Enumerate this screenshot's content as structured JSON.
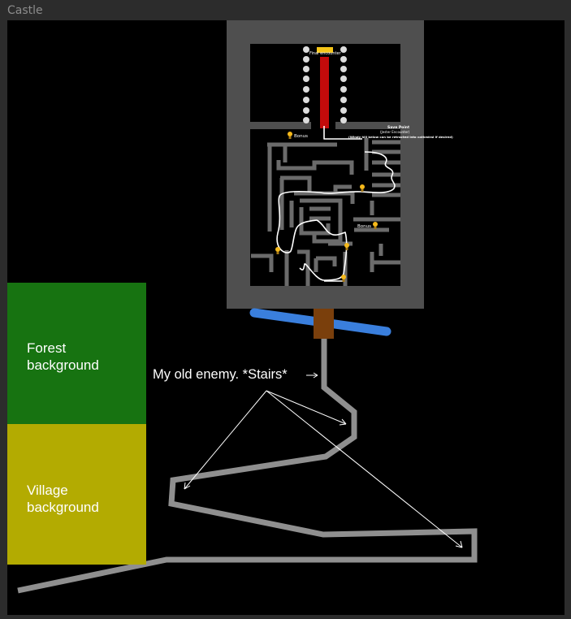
{
  "frame": {
    "title": "Castle"
  },
  "castle": {
    "final_encounter_label": "Final encounter",
    "save_point": {
      "title": "Save Point",
      "subtitle": "(Jester Encounter)",
      "note": "(Windy hill below can be retracted into cathedral if desired)"
    },
    "bonus_labels": [
      "Bonus",
      "Bonus"
    ]
  },
  "backgrounds": {
    "forest": "Forest background",
    "village": "Village background"
  },
  "annotations": {
    "stairs": "My old enemy. *Stairs*"
  },
  "colors": {
    "castle_wall": "#4f4f4f",
    "maze_wall": "#6b6b6b",
    "carpet": "#c30b0b",
    "throne": "#f5c518",
    "bridge": "#3a7fdd",
    "door": "#7a3f0c",
    "stairs": "#8f8f8f",
    "forest": "#177311",
    "village": "#b3ab01"
  }
}
